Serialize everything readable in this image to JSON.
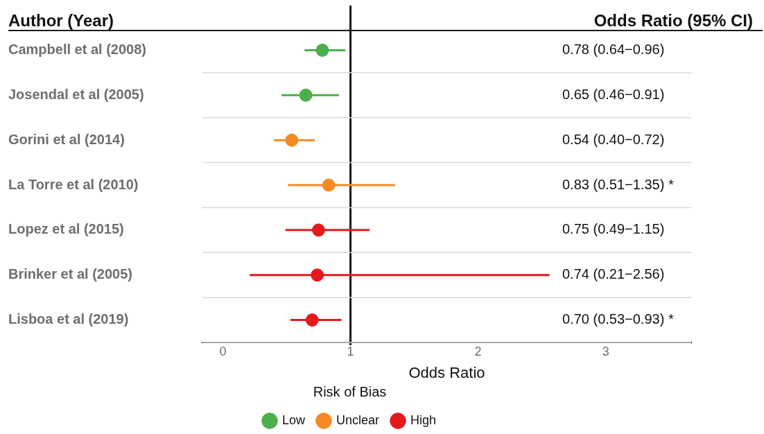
{
  "chart_data": {
    "type": "scatter",
    "orientation": "horizontal",
    "marker": "circle",
    "grid": "y",
    "legend": "bottom",
    "legend_title": "Risk of Bias",
    "xlabel": "Odds Ratio",
    "xlim": [
      -0.16,
      3.67
    ],
    "xticks": [
      0,
      1,
      2,
      3
    ],
    "categories": [
      "Campbell et al (2008)",
      "Josendal et al (2005)",
      "Gorini et al (2014)",
      "La Torre et al (2010)",
      "Lopez et al (2015)",
      "Brinker et al (2005)",
      "Lisboa et al (2019)"
    ],
    "annotations": [
      "Author (Year)",
      "Odds Ratio (95% CI)",
      "0.78 (0.64−0.96)",
      "0.65 (0.46−0.91)",
      "0.54 (0.40−0.72)",
      "0.83 (0.51−1.35) *",
      "0.75 (0.49−1.15)",
      "0.74 (0.21−2.56)",
      "0.70 (0.53−0.93) *"
    ],
    "ref_lines": [
      {
        "axis": "x",
        "value": 1,
        "color": "#1a1a1a"
      }
    ],
    "series": [
      {
        "name": "Low",
        "color": "#4daf4a",
        "values": [
          0.78,
          0.65,
          null,
          null,
          null,
          null,
          null
        ],
        "errors": [
          [
            0.64,
            0.96
          ],
          [
            0.46,
            0.91
          ],
          null,
          null,
          null,
          null,
          null
        ]
      },
      {
        "name": "Unclear",
        "color": "#f58a25",
        "values": [
          null,
          null,
          0.54,
          0.83,
          null,
          null,
          null
        ],
        "errors": [
          null,
          null,
          [
            0.4,
            0.72
          ],
          [
            0.51,
            1.35
          ],
          null,
          null,
          null
        ]
      },
      {
        "name": "High",
        "color": "#e41a1c",
        "values": [
          null,
          null,
          null,
          null,
          0.75,
          0.74,
          0.7
        ],
        "errors": [
          null,
          null,
          null,
          null,
          [
            0.49,
            1.15
          ],
          [
            0.21,
            2.56
          ],
          [
            0.53,
            0.93
          ]
        ]
      }
    ]
  }
}
